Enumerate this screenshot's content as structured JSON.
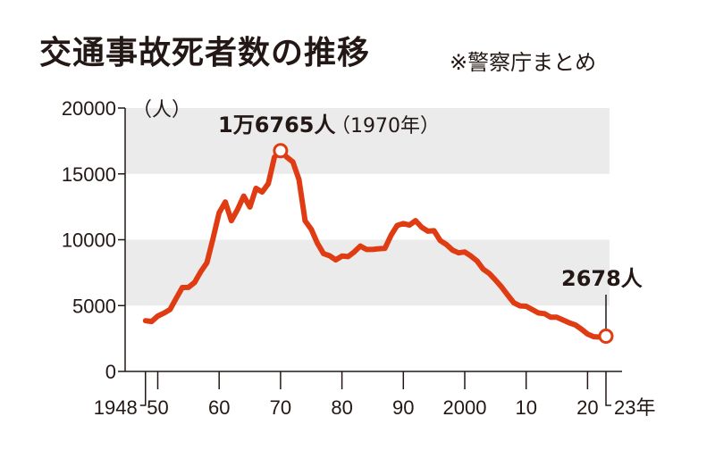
{
  "header": {
    "title": "交通事故死者数の推移",
    "source_note": "※警察庁まとめ"
  },
  "chart_data": {
    "type": "line",
    "title": "交通事故死者数の推移",
    "xlabel": "年",
    "ylabel": "（人）",
    "ylim": [
      0,
      20000
    ],
    "xlim": [
      1948,
      2023
    ],
    "y_ticks": [
      "0",
      "5000",
      "10000",
      "15000",
      "20000"
    ],
    "x_tick_labels": [
      {
        "year": 1948,
        "label": "1948"
      },
      {
        "year": 1950,
        "label": "50"
      },
      {
        "year": 1960,
        "label": "60"
      },
      {
        "year": 1970,
        "label": "70"
      },
      {
        "year": 1980,
        "label": "80"
      },
      {
        "year": 1990,
        "label": "90"
      },
      {
        "year": 2000,
        "label": "2000"
      },
      {
        "year": 2010,
        "label": "10"
      },
      {
        "year": 2020,
        "label": "20"
      },
      {
        "year": 2023,
        "label": "23年"
      }
    ],
    "bands": [
      [
        5000,
        10000
      ],
      [
        15000,
        20000
      ]
    ],
    "line_color": "#e03c14",
    "band_color": "#ebebeb",
    "series": [
      {
        "name": "交通事故死者数",
        "x": [
          1948,
          1949,
          1950,
          1951,
          1952,
          1953,
          1954,
          1955,
          1956,
          1957,
          1958,
          1959,
          1960,
          1961,
          1962,
          1963,
          1964,
          1965,
          1966,
          1967,
          1968,
          1969,
          1970,
          1971,
          1972,
          1973,
          1974,
          1975,
          1976,
          1977,
          1978,
          1979,
          1980,
          1981,
          1982,
          1983,
          1984,
          1985,
          1986,
          1987,
          1988,
          1989,
          1990,
          1991,
          1992,
          1993,
          1994,
          1995,
          1996,
          1997,
          1998,
          1999,
          2000,
          2001,
          2002,
          2003,
          2004,
          2005,
          2006,
          2007,
          2008,
          2009,
          2010,
          2011,
          2012,
          2013,
          2014,
          2015,
          2016,
          2017,
          2018,
          2019,
          2020,
          2021,
          2022,
          2023
        ],
        "values": [
          3848,
          3790,
          4202,
          4429,
          4696,
          5544,
          6374,
          6379,
          6751,
          7575,
          8248,
          10079,
          12055,
          12865,
          11445,
          12301,
          13318,
          12484,
          13904,
          13618,
          14256,
          16257,
          16765,
          16278,
          15918,
          14574,
          11432,
          10792,
          9734,
          8945,
          8783,
          8466,
          8760,
          8719,
          9073,
          9520,
          9262,
          9261,
          9317,
          9347,
          10344,
          11086,
          11227,
          11109,
          11452,
          10942,
          10649,
          10684,
          9942,
          9640,
          9211,
          9006,
          9073,
          8757,
          8396,
          7768,
          7436,
          6937,
          6415,
          5796,
          5209,
          4979,
          4948,
          4691,
          4438,
          4388,
          4113,
          4117,
          3904,
          3694,
          3532,
          3215,
          2839,
          2636,
          2610,
          2678
        ]
      }
    ],
    "annotations": {
      "peak_value": "1万6765人",
      "peak_year": "（1970年）",
      "peak_x": 1970,
      "peak_y": 16765,
      "last_value": "2678人",
      "last_x": 2023,
      "last_y": 2678
    }
  }
}
